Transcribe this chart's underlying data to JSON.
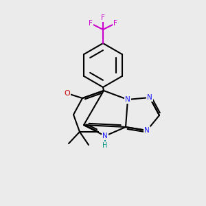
{
  "bg": "#ebebeb",
  "bc": "#000000",
  "Nc": "#1a1aff",
  "Oc": "#cc0000",
  "Fc": "#cc00cc",
  "Hc": "#009988",
  "lw": 1.5,
  "lw_inner": 1.3
}
